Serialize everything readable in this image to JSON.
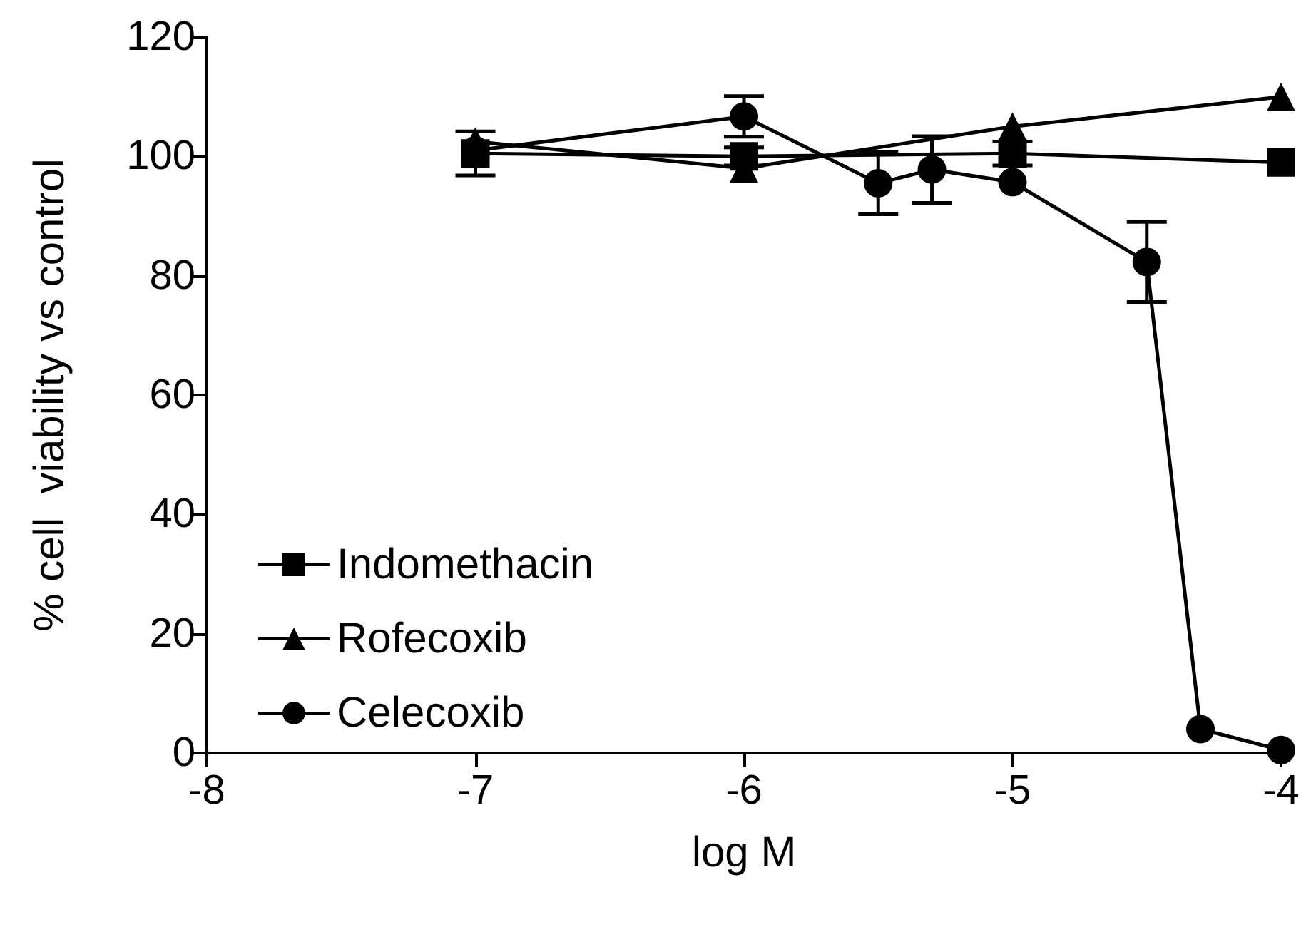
{
  "chart_data": {
    "type": "line",
    "xlabel": "log M",
    "ylabel": "% cell  viability vs control",
    "xlim": [
      -8,
      -4
    ],
    "xticks": [
      -8,
      -7,
      -6,
      -5,
      -4
    ],
    "ylim": [
      0,
      120
    ],
    "yticks": [
      0,
      20,
      40,
      60,
      80,
      100,
      120
    ],
    "grid": false,
    "legend": "bottom left",
    "series": [
      {
        "name": "Indomethacin",
        "color": "#000000",
        "marker": "square",
        "x": [
          -7,
          -6,
          -5,
          -4
        ],
        "values": [
          100.5,
          100,
          100.5,
          99
        ],
        "errors": [
          3.7,
          1.5,
          2,
          null
        ]
      },
      {
        "name": "Rofecoxib",
        "color": "#000000",
        "marker": "triangle",
        "x": [
          -7,
          -6,
          -5,
          -4
        ],
        "values": [
          102.5,
          98,
          105,
          110
        ],
        "errors": [
          null,
          null,
          null,
          null
        ]
      },
      {
        "name": "Celecoxib",
        "color": "#000000",
        "marker": "circle",
        "x": [
          -7,
          -6,
          -5.5,
          -5.3,
          -5,
          -4.5,
          -4.3,
          -4
        ],
        "values": [
          101,
          106.7,
          95.5,
          97.8,
          95.7,
          82.3,
          4,
          0.5
        ],
        "errors": [
          null,
          3.4,
          5.2,
          5.6,
          null,
          6.7,
          null,
          null
        ]
      }
    ]
  }
}
